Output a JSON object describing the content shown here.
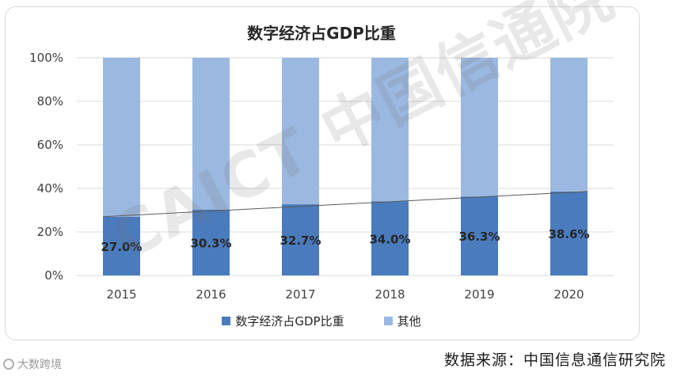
{
  "chart_data": {
    "type": "bar",
    "stacked": true,
    "percent_stacked": true,
    "title": "数字经济占GDP比重",
    "categories": [
      "2015",
      "2016",
      "2017",
      "2018",
      "2019",
      "2020"
    ],
    "series": [
      {
        "name": "数字经济占GDP比重",
        "values": [
          27.0,
          30.3,
          32.7,
          34.0,
          36.3,
          38.6
        ],
        "color": "#4a7bbd"
      },
      {
        "name": "其他",
        "values": [
          73.0,
          69.7,
          67.3,
          66.0,
          63.7,
          61.4
        ],
        "color": "#9bb9e0"
      }
    ],
    "data_labels": [
      "27.0%",
      "30.3%",
      "32.7%",
      "34.0%",
      "36.3%",
      "38.6%"
    ],
    "ylim": [
      0,
      100
    ],
    "yticks": [
      "0%",
      "20%",
      "40%",
      "60%",
      "80%",
      "100%"
    ],
    "grid": true,
    "trend_line": true,
    "legend": "bottom"
  },
  "source": "数据来源：中国信息通信研究院",
  "watermark": "CAICT 中国信通院",
  "brand": "大数跨境"
}
